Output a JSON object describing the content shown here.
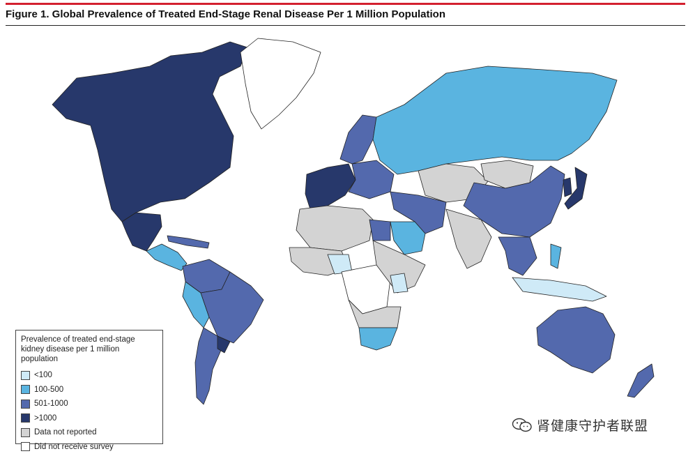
{
  "header": {
    "title": "Figure 1. Global Prevalence of Treated End-Stage Renal Disease Per 1 Million Population",
    "accent_color": "#d3202f"
  },
  "map": {
    "region_categories": {
      "north_america": ">1000",
      "greenland": "Did not receive survey",
      "mexico": ">1000",
      "central_america": "100-500",
      "caribbean": "501-1000",
      "south_america_north": "501-1000",
      "south_america_west": "100-500",
      "brazil": "501-1000",
      "argentina_chile": "501-1000",
      "uruguay": ">1000",
      "western_europe": ">1000",
      "northern_europe": "501-1000",
      "eastern_europe": "501-1000",
      "russia": "100-500",
      "central_asia": "Data not reported",
      "middle_east": "501-1000",
      "saudi_arabia": "100-500",
      "north_africa": "Data not reported",
      "egypt": "501-1000",
      "west_africa": "Data not reported",
      "nigeria": "<100",
      "central_africa": "Did not receive survey",
      "east_africa": "Data not reported",
      "kenya": "<100",
      "southern_africa": "Data not reported",
      "south_africa": "100-500",
      "china": "501-1000",
      "india": "Data not reported",
      "southeast_asia": "501-1000",
      "japan": ">1000",
      "korea": ">1000",
      "mongolia": "Data not reported",
      "indonesia": "<100",
      "philippines": "100-500",
      "australia": "501-1000",
      "new_zealand": "501-1000"
    }
  },
  "legend": {
    "title": "Prevalence of treated end-stage kidney disease per 1 million population",
    "items": [
      {
        "label": "<100",
        "color": "#cfeaf7"
      },
      {
        "label": "100-500",
        "color": "#5ab4e0"
      },
      {
        "label": "501-1000",
        "color": "#5369ad"
      },
      {
        "label": ">1000",
        "color": "#27386b"
      },
      {
        "label": "Data not reported",
        "color": "#d3d3d3"
      },
      {
        "label": "Did not receive survey",
        "color": "#ffffff"
      }
    ]
  },
  "watermark": {
    "text": "肾健康守护者联盟",
    "icon": "wechat-icon"
  }
}
